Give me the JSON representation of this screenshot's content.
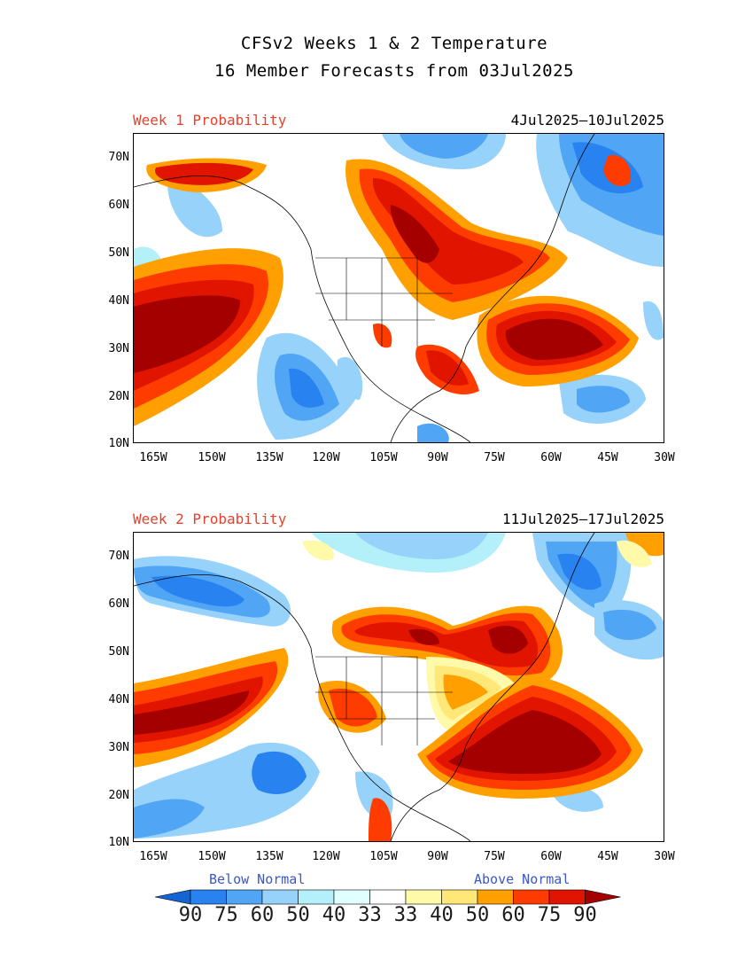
{
  "title": {
    "line1": "CFSv2 Weeks 1 & 2 Temperature",
    "line2": "16 Member Forecasts from 03Jul2025"
  },
  "panels": [
    {
      "label": "Week 1 Probability",
      "dates": "4Jul2025—10Jul2025"
    },
    {
      "label": "Week 2 Probability",
      "dates": "11Jul2025—17Jul2025"
    }
  ],
  "axes": {
    "lat_labels": [
      "70N",
      "60N",
      "50N",
      "40N",
      "30N",
      "20N",
      "10N"
    ],
    "lon_labels": [
      "165W",
      "150W",
      "135W",
      "120W",
      "105W",
      "90W",
      "75W",
      "60W",
      "45W",
      "30W"
    ]
  },
  "legend": {
    "below_label": "Below Normal",
    "above_label": "Above Normal",
    "values": [
      "90",
      "75",
      "60",
      "50",
      "40",
      "33",
      "33",
      "40",
      "50",
      "60",
      "75",
      "90"
    ],
    "colors": [
      "#1464d2",
      "#2882f0",
      "#50a5f5",
      "#96d2fa",
      "#b4f0fa",
      "#e1ffff",
      "#ffffff",
      "#fffaaa",
      "#ffe878",
      "#ffa000",
      "#ff3c00",
      "#e11400",
      "#a50000"
    ]
  }
}
